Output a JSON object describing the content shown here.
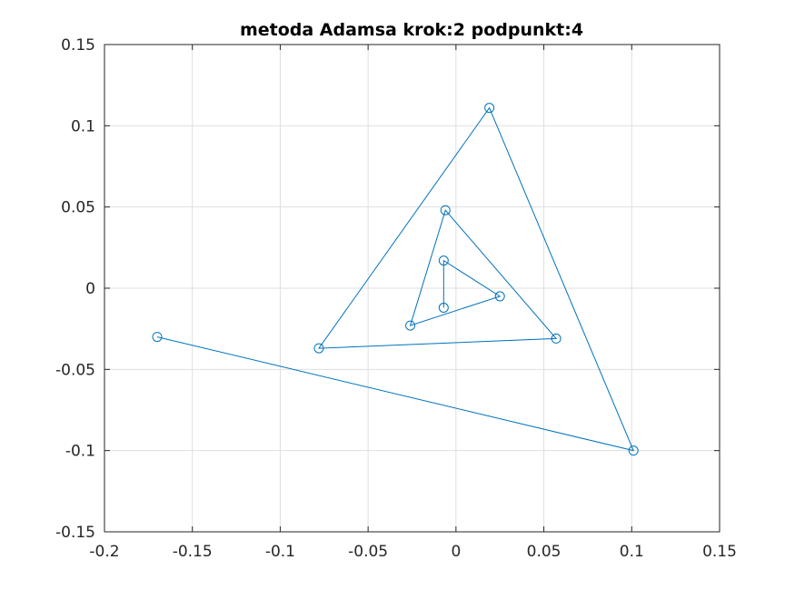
{
  "chart_data": {
    "type": "line",
    "title": "metoda Adamsa krok:2 podpunkt:4",
    "xlabel": "",
    "ylabel": "",
    "xlim": [
      -0.2,
      0.15
    ],
    "ylim": [
      -0.15,
      0.15
    ],
    "grid": true,
    "marker": "circle",
    "color": "#0072bd",
    "x_ticks": [
      -0.2,
      -0.15,
      -0.1,
      -0.05,
      0,
      0.05,
      0.1,
      0.15
    ],
    "x_tick_labels": [
      "-0.2",
      "-0.15",
      "-0.1",
      "-0.05",
      "0",
      "0.05",
      "0.1",
      "0.15"
    ],
    "y_ticks": [
      -0.15,
      -0.1,
      -0.05,
      0,
      0.05,
      0.1,
      0.15
    ],
    "y_tick_labels": [
      "-0.15",
      "-0.1",
      "-0.05",
      "0",
      "0.05",
      "0.1",
      "0.15"
    ],
    "series": [
      {
        "x": [
          -0.17,
          0.101,
          0.019,
          -0.078,
          0.057,
          -0.006,
          -0.026,
          0.025,
          -0.007,
          -0.007
        ],
        "y": [
          -0.03,
          -0.1,
          0.111,
          -0.037,
          -0.031,
          0.048,
          -0.023,
          -0.005,
          0.017,
          -0.012
        ]
      }
    ]
  }
}
